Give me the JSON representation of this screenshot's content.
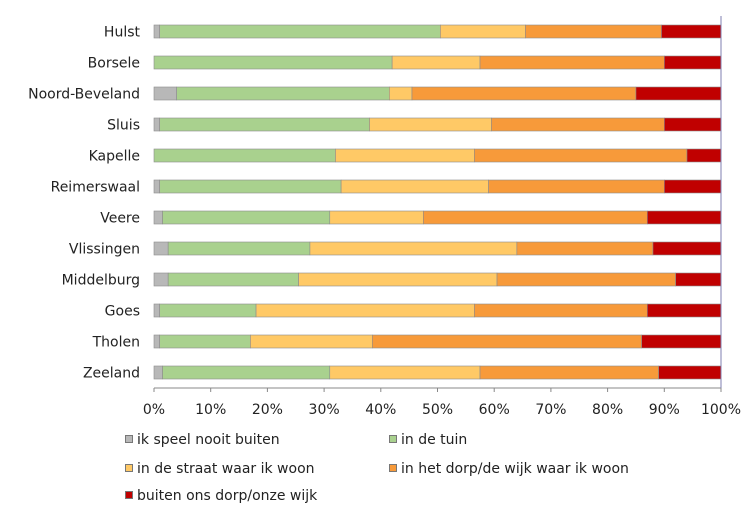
{
  "chart_data": {
    "type": "bar",
    "orientation": "horizontal",
    "stacked": true,
    "percent_stacked": true,
    "categories": [
      "Hulst",
      "Borsele",
      "Noord-Beveland",
      "Sluis",
      "Kapelle",
      "Reimerswaal",
      "Veere",
      "Vlissingen",
      "Middelburg",
      "Goes",
      "Tholen",
      "Zeeland"
    ],
    "series": [
      {
        "name": "ik speel nooit buiten",
        "color": "#b8b8b8",
        "values": [
          1,
          0,
          4,
          1,
          0,
          1,
          1.5,
          2.5,
          2.5,
          1,
          1,
          1.5
        ]
      },
      {
        "name": "in de tuin",
        "color": "#a9d18e",
        "values": [
          49.5,
          42,
          37.5,
          37,
          32,
          32,
          29.5,
          25,
          23,
          17,
          16,
          29.5
        ]
      },
      {
        "name": "in de straat waar ik woon",
        "color": "#ffc966",
        "values": [
          15,
          15.5,
          4,
          21.5,
          24.5,
          26,
          16.5,
          36.5,
          35,
          38.5,
          21.5,
          26.5
        ]
      },
      {
        "name": "in het dorp/de wijk waar ik woon",
        "color": "#f79a3a",
        "values": [
          24,
          32.5,
          39.5,
          30.5,
          37.5,
          31,
          39.5,
          24,
          31.5,
          30.5,
          47.5,
          31.5
        ]
      },
      {
        "name": "buiten ons dorp/onze wijk",
        "color": "#c00000",
        "values": [
          10.5,
          10,
          15,
          10,
          6,
          10,
          13,
          12,
          8,
          13,
          14,
          11
        ]
      }
    ],
    "xlim": [
      0,
      100
    ],
    "x_ticks": [
      "0%",
      "10%",
      "20%",
      "30%",
      "40%",
      "50%",
      "60%",
      "70%",
      "80%",
      "90%",
      "100%"
    ],
    "gridlines": false,
    "legend_position": "bottom"
  }
}
